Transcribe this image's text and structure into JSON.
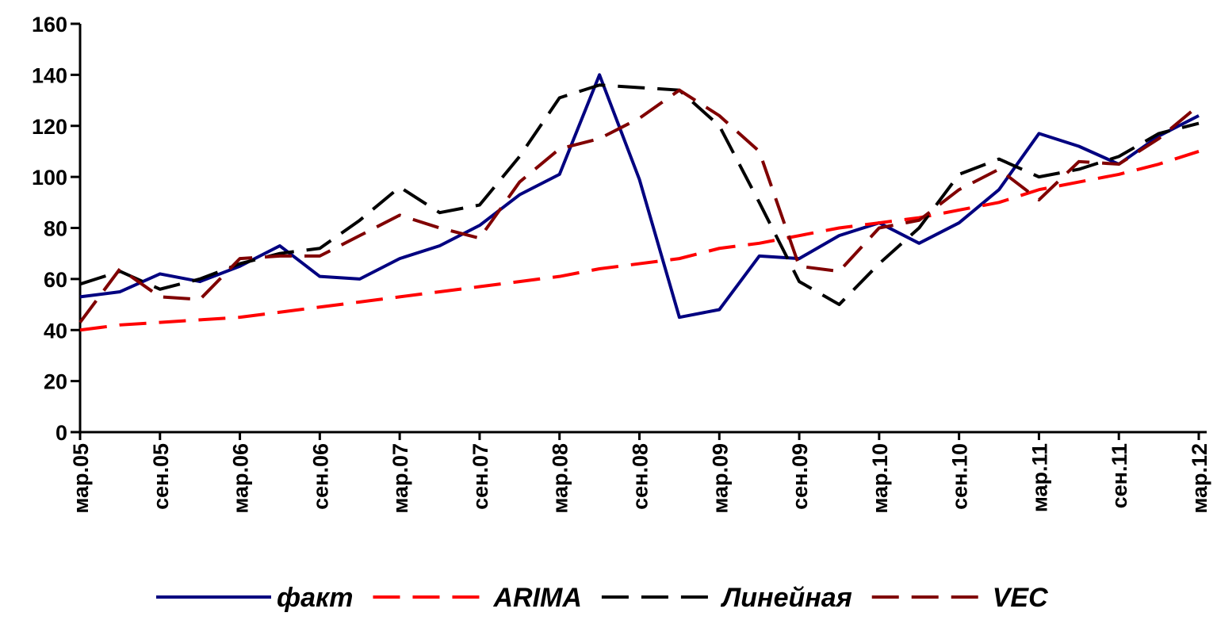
{
  "chart_data": {
    "type": "line",
    "categories": [
      "мар.05",
      null,
      "сен.05",
      null,
      "мар.06",
      null,
      "сен.06",
      null,
      "мар.07",
      null,
      "сен.07",
      null,
      "мар.08",
      null,
      "сен.08",
      null,
      "мар.09",
      null,
      "сен.09",
      null,
      "мар.10",
      null,
      "сен.10",
      null,
      "мар.11",
      null,
      "сен.11",
      null,
      "мар.12"
    ],
    "series": [
      {
        "name": "факт",
        "color": "#000080",
        "line_style": "solid",
        "values": [
          53,
          55,
          62,
          59,
          65,
          73,
          61,
          60,
          68,
          73,
          81,
          93,
          101,
          140,
          99,
          45,
          48,
          69,
          68,
          77,
          82,
          74,
          82,
          95,
          117,
          112,
          105,
          116,
          124
        ]
      },
      {
        "name": "ARIMA",
        "color": "#ff0000",
        "line_style": "dashed",
        "values": [
          40,
          42,
          43,
          44,
          45,
          47,
          49,
          51,
          53,
          55,
          57,
          59,
          61,
          64,
          66,
          68,
          72,
          74,
          77,
          80,
          82,
          84,
          87,
          90,
          95,
          98,
          101,
          105,
          110
        ]
      },
      {
        "name": "Линейная",
        "color": "#000000",
        "line_style": "dashed",
        "values": [
          58,
          63,
          56,
          60,
          66,
          70,
          72,
          83,
          96,
          86,
          89,
          108,
          131,
          136,
          135,
          134,
          120,
          90,
          59,
          50,
          66,
          80,
          101,
          107,
          100,
          103,
          108,
          117,
          121
        ]
      },
      {
        "name": "VEC",
        "color": "#800000",
        "line_style": "dashed",
        "values": [
          43,
          64,
          53,
          52,
          68,
          69,
          69,
          77,
          85,
          80,
          76,
          98,
          111,
          115,
          123,
          134,
          124,
          110,
          65,
          63,
          80,
          83,
          95,
          103,
          91,
          106,
          105,
          115,
          128
        ]
      }
    ],
    "ylim": [
      0,
      160
    ],
    "yticks": [
      0,
      20,
      40,
      60,
      80,
      100,
      120,
      140,
      160
    ],
    "grid": false,
    "legend": "bottom"
  }
}
